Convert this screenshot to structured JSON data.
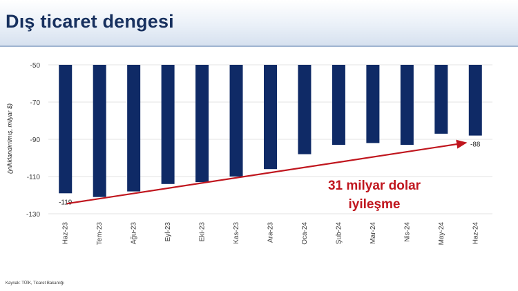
{
  "header": {
    "title": "Dış ticaret dengesi"
  },
  "footer": {
    "source": "Kaynak: TÜİK, Ticaret Bakanlığı"
  },
  "chart_data": {
    "type": "bar",
    "ylabel": "(yıllıklandırılmış, milyar $)",
    "ylim": [
      -130,
      -50
    ],
    "yticks": [
      -50,
      -70,
      -90,
      -110,
      -130
    ],
    "grid": true,
    "bar_color": "#0f2a66",
    "categories": [
      "Haz-23",
      "Tem-23",
      "Ağu-23",
      "Eyl-23",
      "Eki-23",
      "Kas-23",
      "Ara-23",
      "Oca-24",
      "Şub-24",
      "Mar-24",
      "Nis-24",
      "May-24",
      "Haz-24"
    ],
    "values": [
      -119,
      -121,
      -118,
      -114,
      -113,
      -110,
      -106,
      -98,
      -93,
      -92,
      -93,
      -87,
      -88
    ],
    "data_labels": [
      {
        "index": 0,
        "text": "-119"
      },
      {
        "index": 12,
        "text": "-88"
      }
    ],
    "annotation": {
      "lines": [
        "31 milyar dolar",
        "iyileşme"
      ],
      "color": "#c0161e",
      "arrow": {
        "from": {
          "category": "Haz-23",
          "value": -119
        },
        "to": {
          "category": "Haz-24",
          "value": -93
        }
      }
    }
  }
}
